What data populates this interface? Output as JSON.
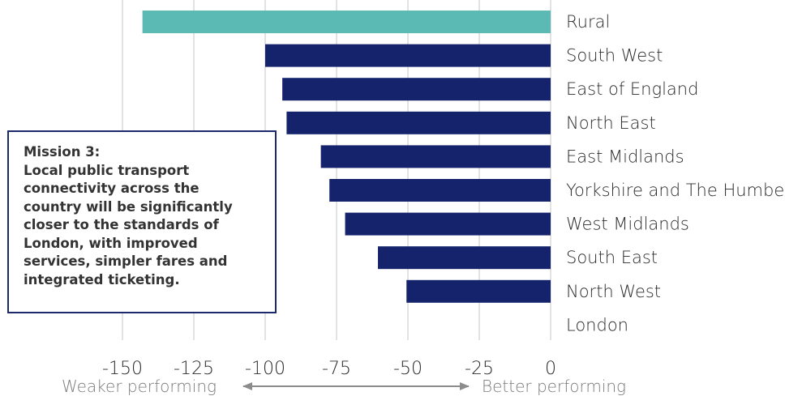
{
  "chart_data": {
    "type": "bar",
    "orientation": "horizontal",
    "categories": [
      "Rural",
      "South West",
      "East of England",
      "North East",
      "East Midlands",
      "Yorkshire and The Humber",
      "West Midlands",
      "South East",
      "North West",
      "London"
    ],
    "values": [
      -143,
      -100,
      -94,
      -92.5,
      -80.5,
      -77.5,
      -72,
      -60.5,
      -50.5,
      0
    ],
    "bar_colors": [
      "#5bbab3",
      "#14236b",
      "#14236b",
      "#14236b",
      "#14236b",
      "#14236b",
      "#14236b",
      "#14236b",
      "#14236b",
      "#14236b"
    ],
    "xlim": [
      -150,
      0
    ],
    "xticks": [
      "-150",
      "-125",
      "-100",
      "-75",
      "-50",
      "-25",
      "0"
    ],
    "grid": true,
    "direction_labels": {
      "left": "Weaker performing",
      "right": "Better performing"
    }
  },
  "mission": {
    "title": "Mission 3:",
    "lines": [
      "Local public transport",
      "connectivity across the",
      "country will be significantly",
      "closer to the standards of",
      "London, with improved",
      "services, simpler fares and",
      "integrated ticketing."
    ]
  },
  "colors": {
    "accent": "#5bbab3",
    "bar": "#14236b",
    "box_border": "#1a2a6c",
    "grid": "#d9d9d9",
    "arrow": "#8c8c8c"
  }
}
